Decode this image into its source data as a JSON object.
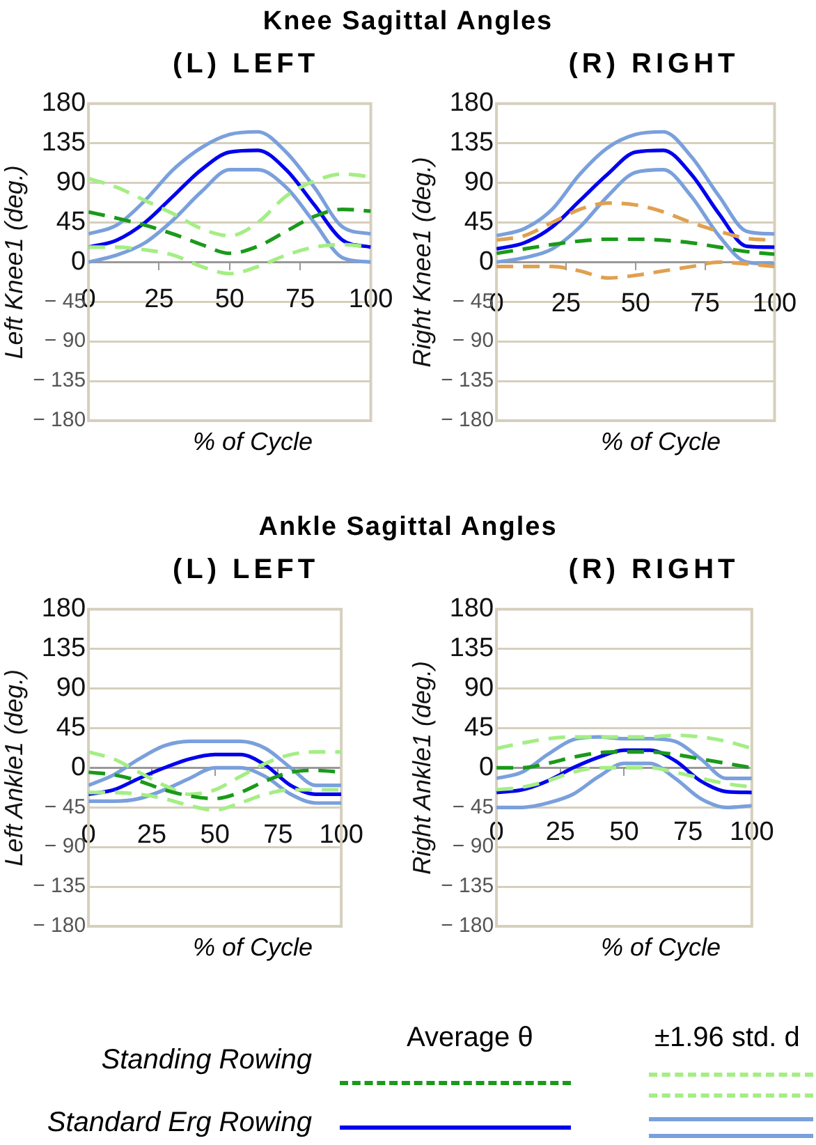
{
  "chart_data": [
    {
      "type": "line",
      "title": "Knee Sagittal Angles",
      "subtitle": "(L) LEFT",
      "xlabel": "% of Cycle",
      "ylabel": "Left Knee1 (deg.)",
      "x": [
        0,
        10,
        20,
        30,
        40,
        50,
        60,
        70,
        80,
        90,
        100
      ],
      "xlim": [
        0,
        100
      ],
      "xticks": [
        0,
        25,
        50,
        75,
        100
      ],
      "ylim": [
        -180,
        180
      ],
      "yticks": [
        {
          "value": -180,
          "label": "− 180"
        },
        {
          "value": -135,
          "label": "− 135"
        },
        {
          "value": -90,
          "label": "− 90"
        },
        {
          "value": -45,
          "label": "− 45"
        },
        0,
        45,
        90,
        135,
        180
      ],
      "grid": "y",
      "series": [
        {
          "color": "#1a9a1a",
          "line_style": "dashed",
          "values": [
            57,
            50,
            42,
            32,
            20,
            10,
            18,
            35,
            52,
            60,
            58
          ]
        },
        {
          "color": "#a4ee84",
          "line_style": "dashed",
          "values": [
            95,
            85,
            70,
            55,
            38,
            30,
            45,
            75,
            92,
            100,
            97
          ]
        },
        {
          "color": "#a4ee84",
          "line_style": "dashed",
          "values": [
            17,
            17,
            14,
            8,
            -5,
            -13,
            -5,
            8,
            17,
            20,
            17
          ]
        },
        {
          "color": "#0000ee",
          "line_style": "solid",
          "values": [
            17,
            25,
            45,
            75,
            105,
            125,
            127,
            105,
            65,
            25,
            17
          ]
        },
        {
          "color": "#7aa0dc",
          "line_style": "solid",
          "values": [
            32,
            42,
            70,
            105,
            130,
            145,
            148,
            125,
            85,
            40,
            32
          ]
        },
        {
          "color": "#7aa0dc",
          "line_style": "solid",
          "values": [
            0,
            8,
            22,
            48,
            80,
            105,
            105,
            85,
            45,
            5,
            0
          ]
        }
      ]
    },
    {
      "type": "line",
      "subtitle": "(R) RIGHT",
      "xlabel": "% of Cycle",
      "ylabel": "Right Knee1 (deg.)",
      "x": [
        0,
        10,
        20,
        30,
        40,
        50,
        60,
        70,
        80,
        90,
        100
      ],
      "xlim": [
        0,
        100
      ],
      "xticks": [
        0,
        25,
        50,
        75,
        100
      ],
      "ylim": [
        -180,
        180
      ],
      "yticks": [
        {
          "value": -180,
          "label": "− 180"
        },
        {
          "value": -135,
          "label": "− 135"
        },
        {
          "value": -90,
          "label": "− 90"
        },
        {
          "value": -45,
          "label": "− 45"
        },
        0,
        45,
        90,
        135,
        180
      ],
      "grid": "y",
      "series": [
        {
          "color": "#1a9a1a",
          "line_style": "dashed",
          "values": [
            10,
            15,
            20,
            24,
            26,
            26,
            25,
            22,
            17,
            12,
            9
          ]
        },
        {
          "color": "#e0a050",
          "line_style": "dashed",
          "values": [
            25,
            30,
            45,
            60,
            67,
            65,
            57,
            45,
            35,
            27,
            25
          ]
        },
        {
          "color": "#e0a050",
          "line_style": "dashed",
          "values": [
            -5,
            -5,
            -5,
            -10,
            -18,
            -15,
            -10,
            -5,
            0,
            -2,
            -5
          ]
        },
        {
          "color": "#0000ee",
          "line_style": "solid",
          "values": [
            15,
            22,
            40,
            70,
            100,
            125,
            127,
            100,
            55,
            18,
            17
          ]
        },
        {
          "color": "#7aa0dc",
          "line_style": "solid",
          "values": [
            30,
            38,
            60,
            100,
            130,
            145,
            148,
            120,
            75,
            35,
            32
          ]
        },
        {
          "color": "#7aa0dc",
          "line_style": "solid",
          "values": [
            0,
            5,
            15,
            40,
            75,
            102,
            105,
            75,
            30,
            0,
            -2
          ]
        }
      ]
    },
    {
      "type": "line",
      "title": "Ankle Sagittal Angles",
      "subtitle": "(L) LEFT",
      "xlabel": "% of Cycle",
      "ylabel": "Left Ankle1 (deg.)",
      "x": [
        0,
        10,
        20,
        30,
        40,
        50,
        60,
        70,
        80,
        90,
        100
      ],
      "xlim": [
        0,
        100
      ],
      "xticks": [
        0,
        25,
        50,
        75,
        100
      ],
      "ylim": [
        -180,
        180
      ],
      "yticks": [
        {
          "value": -180,
          "label": "− 180"
        },
        {
          "value": -135,
          "label": "− 135"
        },
        {
          "value": -90,
          "label": "− 90"
        },
        {
          "value": -45,
          "label": "− 45"
        },
        0,
        45,
        90,
        135,
        180
      ],
      "grid": "y",
      "series": [
        {
          "color": "#1a9a1a",
          "line_style": "dashed",
          "values": [
            -5,
            -8,
            -15,
            -25,
            -32,
            -35,
            -28,
            -15,
            -5,
            -3,
            -5
          ]
        },
        {
          "color": "#a4ee84",
          "line_style": "dashed",
          "values": [
            18,
            10,
            -5,
            -20,
            -30,
            -25,
            -10,
            5,
            15,
            18,
            18
          ]
        },
        {
          "color": "#a4ee84",
          "line_style": "dashed",
          "values": [
            -28,
            -28,
            -30,
            -35,
            -43,
            -48,
            -40,
            -30,
            -25,
            -25,
            -25
          ]
        },
        {
          "color": "#0000ee",
          "line_style": "solid",
          "values": [
            -30,
            -25,
            -12,
            0,
            10,
            15,
            15,
            3,
            -20,
            -30,
            -30
          ]
        },
        {
          "color": "#7aa0dc",
          "line_style": "solid",
          "values": [
            -20,
            -8,
            10,
            25,
            30,
            30,
            30,
            22,
            0,
            -20,
            -20
          ]
        },
        {
          "color": "#7aa0dc",
          "line_style": "solid",
          "values": [
            -38,
            -38,
            -35,
            -25,
            -12,
            0,
            0,
            -10,
            -30,
            -40,
            -40
          ]
        }
      ]
    },
    {
      "type": "line",
      "subtitle": "(R) RIGHT",
      "xlabel": "% of Cycle",
      "ylabel": "Right Ankle1 (deg.)",
      "x": [
        0,
        10,
        20,
        30,
        40,
        50,
        60,
        70,
        80,
        90,
        100
      ],
      "xlim": [
        0,
        100
      ],
      "xticks": [
        0,
        25,
        50,
        75,
        100
      ],
      "ylim": [
        -180,
        180
      ],
      "yticks": [
        {
          "value": -180,
          "label": "− 180"
        },
        {
          "value": -135,
          "label": "− 135"
        },
        {
          "value": -90,
          "label": "− 90"
        },
        {
          "value": -45,
          "label": "− 45"
        },
        0,
        45,
        90,
        135,
        180
      ],
      "grid": "y",
      "series": [
        {
          "color": "#1a9a1a",
          "line_style": "dashed",
          "values": [
            0,
            0,
            5,
            12,
            17,
            18,
            18,
            15,
            10,
            5,
            0
          ]
        },
        {
          "color": "#a4ee84",
          "line_style": "dashed",
          "values": [
            22,
            28,
            33,
            35,
            35,
            35,
            35,
            37,
            35,
            30,
            22
          ]
        },
        {
          "color": "#a4ee84",
          "line_style": "dashed",
          "values": [
            -25,
            -22,
            -15,
            -5,
            0,
            0,
            0,
            -5,
            -12,
            -18,
            -22
          ]
        },
        {
          "color": "#0000ee",
          "line_style": "solid",
          "values": [
            -28,
            -25,
            -15,
            0,
            12,
            20,
            20,
            8,
            -15,
            -27,
            -28
          ]
        },
        {
          "color": "#7aa0dc",
          "line_style": "solid",
          "values": [
            -12,
            -5,
            15,
            32,
            35,
            33,
            33,
            30,
            10,
            -12,
            -12
          ]
        },
        {
          "color": "#7aa0dc",
          "line_style": "solid",
          "values": [
            -45,
            -45,
            -40,
            -30,
            -10,
            5,
            5,
            -12,
            -35,
            -45,
            -43
          ]
        }
      ]
    },
    {
      "type": "other",
      "annotations": [
        "Average θ",
        "±1.96 std. d",
        "Standing Rowing",
        "Standard Erg Rowing"
      ]
    }
  ]
}
